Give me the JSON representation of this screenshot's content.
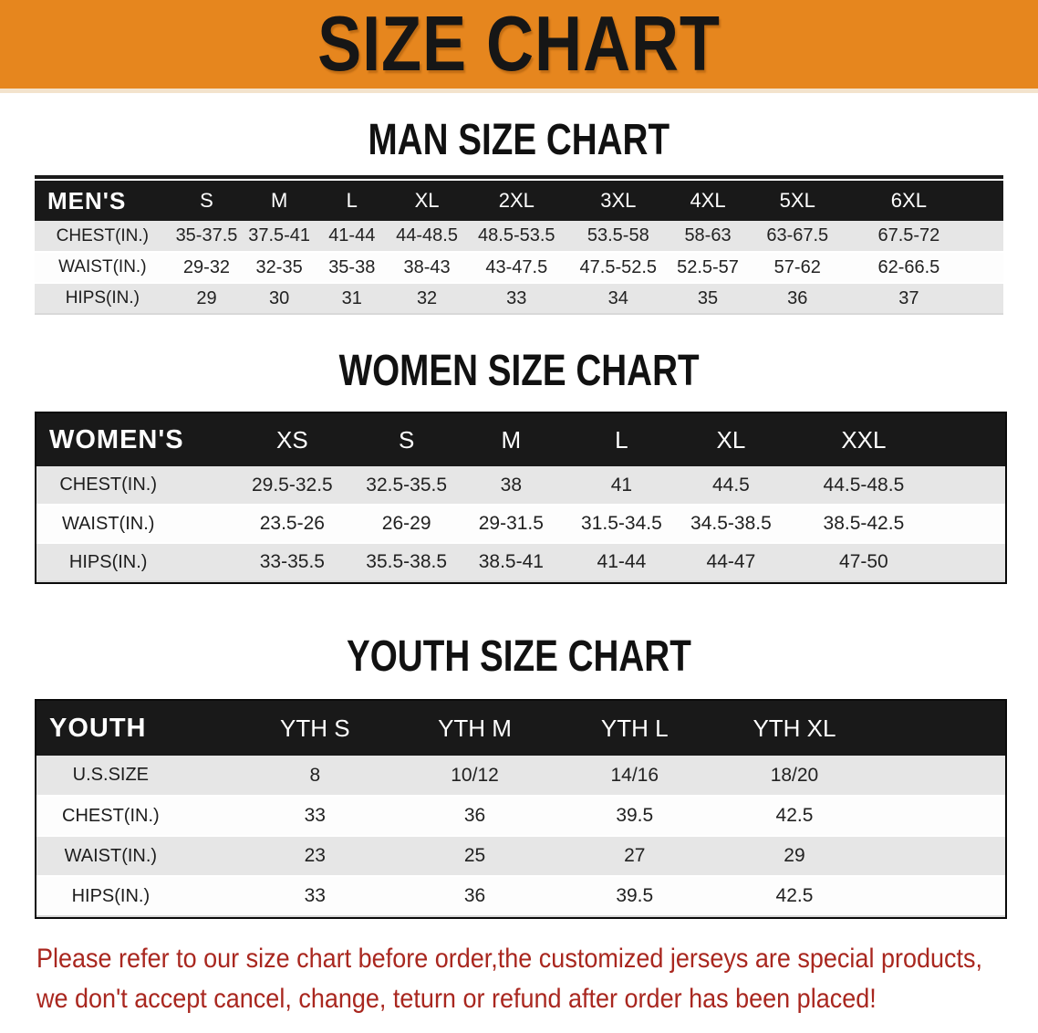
{
  "banner": {
    "title": "SIZE CHART",
    "bg_color": "#e6861e",
    "text_color": "#161616"
  },
  "sections": [
    {
      "heading": "MAN SIZE CHART",
      "table": {
        "label": "MEN'S",
        "columns": [
          "S",
          "M",
          "L",
          "XL",
          "2XL",
          "3XL",
          "4XL",
          "5XL",
          "6XL"
        ],
        "rows": [
          {
            "label": "CHEST(IN.)",
            "values": [
              "35-37.5",
              "37.5-41",
              "41-44",
              "44-48.5",
              "48.5-53.5",
              "53.5-58",
              "58-63",
              "63-67.5",
              "67.5-72"
            ]
          },
          {
            "label": "WAIST(IN.)",
            "values": [
              "29-32",
              "32-35",
              "35-38",
              "38-43",
              "43-47.5",
              "47.5-52.5",
              "52.5-57",
              "57-62",
              "62-66.5"
            ]
          },
          {
            "label": "HIPS(IN.)",
            "values": [
              "29",
              "30",
              "31",
              "32",
              "33",
              "34",
              "35",
              "36",
              "37"
            ]
          }
        ]
      }
    },
    {
      "heading": "WOMEN SIZE CHART",
      "table": {
        "label": "WOMEN'S",
        "columns": [
          "XS",
          "S",
          "M",
          "L",
          "XL",
          "XXL"
        ],
        "rows": [
          {
            "label": "CHEST(IN.)",
            "values": [
              "29.5-32.5",
              "32.5-35.5",
              "38",
              "41",
              "44.5",
              "44.5-48.5"
            ]
          },
          {
            "label": "WAIST(IN.)",
            "values": [
              "23.5-26",
              "26-29",
              "29-31.5",
              "31.5-34.5",
              "34.5-38.5",
              "38.5-42.5"
            ]
          },
          {
            "label": "HIPS(IN.)",
            "values": [
              "33-35.5",
              "35.5-38.5",
              "38.5-41",
              "41-44",
              "44-47",
              "47-50"
            ]
          }
        ]
      }
    },
    {
      "heading": "YOUTH SIZE CHART",
      "table": {
        "label": "YOUTH",
        "columns": [
          "YTH S",
          "YTH M",
          "YTH L",
          "YTH XL"
        ],
        "rows": [
          {
            "label": "U.S.SIZE",
            "values": [
              "8",
              "10/12",
              "14/16",
              "18/20"
            ]
          },
          {
            "label": "CHEST(IN.)",
            "values": [
              "33",
              "36",
              "39.5",
              "42.5"
            ]
          },
          {
            "label": "WAIST(IN.)",
            "values": [
              "23",
              "25",
              "27",
              "29"
            ]
          },
          {
            "label": "HIPS(IN.)",
            "values": [
              "33",
              "36",
              "39.5",
              "42.5"
            ]
          }
        ]
      }
    }
  ],
  "disclaimer": {
    "line1": "Please refer to our size chart before order,the customized jerseys are special products,",
    "line2": "we don't accept cancel, change, teturn or refund after order has been placed!",
    "text_color": "#a9271f"
  },
  "colors": {
    "banner_orange": "#e6861e",
    "table_header_black": "#191919",
    "row_stripe_gray": "#e6e6e6",
    "disclaimer_red": "#a9271f"
  }
}
